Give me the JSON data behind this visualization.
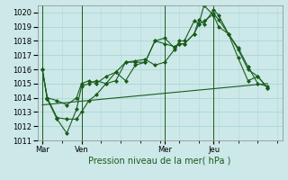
{
  "xlabel": "Pression niveau de la mer( hPa )",
  "ylim": [
    1011,
    1020.5
  ],
  "yticks": [
    1011,
    1012,
    1013,
    1014,
    1015,
    1016,
    1017,
    1018,
    1019,
    1020
  ],
  "xlim": [
    0,
    100
  ],
  "background_color": "#cce8e8",
  "grid_color": "#b0d8d8",
  "line_color": "#1a5c1a",
  "day_labels": [
    "Mar",
    "Ven",
    "Mer",
    "Jeu"
  ],
  "day_positions": [
    2,
    18,
    52,
    72
  ],
  "series1": {
    "x": [
      2,
      4,
      8,
      12,
      16,
      18,
      21,
      24,
      28,
      32,
      36,
      40,
      44,
      48,
      52,
      56,
      58,
      60,
      64,
      66,
      68,
      72,
      74,
      78,
      82,
      86,
      90,
      94
    ],
    "y": [
      1016.0,
      1014.0,
      1013.8,
      1013.5,
      1014.0,
      1015.0,
      1015.2,
      1015.0,
      1015.5,
      1015.8,
      1016.5,
      1016.5,
      1016.5,
      1018.0,
      1018.2,
      1017.5,
      1017.8,
      1017.8,
      1018.5,
      1019.5,
      1019.2,
      1020.2,
      1019.8,
      1018.5,
      1017.5,
      1016.2,
      1015.0,
      1014.8
    ]
  },
  "series2": {
    "x": [
      2,
      4,
      8,
      12,
      16,
      18,
      21,
      24,
      28,
      32,
      36,
      40,
      44,
      48,
      52,
      56,
      58,
      60,
      64,
      66,
      68,
      72,
      74,
      78,
      82,
      86,
      90,
      94
    ],
    "y": [
      1016.0,
      1013.9,
      1012.5,
      1011.5,
      1013.2,
      1014.8,
      1015.0,
      1015.2,
      1015.0,
      1015.8,
      1015.2,
      1016.3,
      1016.5,
      1018.0,
      1017.8,
      1017.6,
      1017.8,
      1017.8,
      1018.5,
      1019.2,
      1019.4,
      1019.9,
      1019.5,
      1018.5,
      1017.4,
      1016.0,
      1015.5,
      1014.7
    ]
  },
  "series3": {
    "x": [
      2,
      4,
      8,
      12,
      16,
      18,
      21,
      24,
      28,
      32,
      36,
      40,
      44,
      48,
      52,
      56,
      58,
      60,
      64,
      66,
      68,
      72,
      74,
      78,
      82,
      86,
      90,
      94
    ],
    "y": [
      1016.0,
      1014.0,
      1012.6,
      1012.5,
      1012.5,
      1013.0,
      1013.8,
      1014.2,
      1015.0,
      1015.2,
      1016.5,
      1016.6,
      1016.7,
      1016.3,
      1016.5,
      1017.4,
      1018.0,
      1018.0,
      1019.4,
      1019.2,
      1020.5,
      1019.8,
      1019.0,
      1018.5,
      1016.8,
      1015.2,
      1015.5,
      1014.7
    ]
  },
  "series4": {
    "x": [
      2,
      94
    ],
    "y": [
      1013.5,
      1015.0
    ]
  },
  "ylabel_fontsize": 6,
  "xlabel_fontsize": 7,
  "tick_fontsize": 6
}
